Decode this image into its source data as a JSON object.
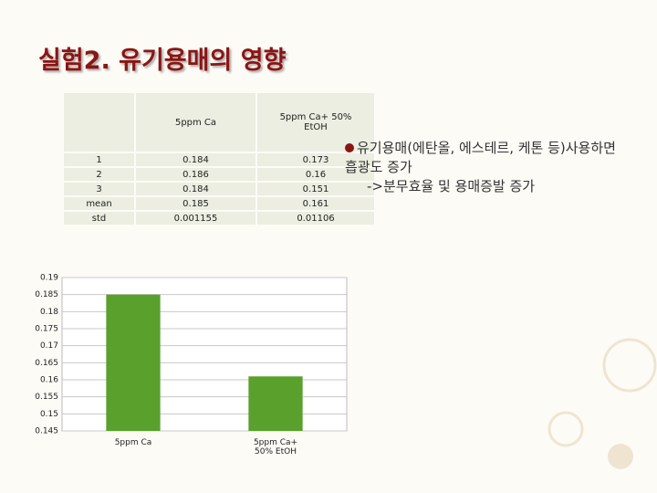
{
  "title": "실험2. 유기용매의 영향",
  "table": {
    "header": [
      "5ppm Ca",
      "5ppm Ca+ 50% EtOH"
    ],
    "rows": [
      [
        "1",
        "0.184",
        "0.173"
      ],
      [
        "2",
        "0.186",
        "0.16"
      ],
      [
        "3",
        "0.184",
        "0.151"
      ],
      [
        "mean",
        "0.185",
        "0.161"
      ],
      [
        "std",
        "0.001155",
        "0.01106"
      ]
    ]
  },
  "note": {
    "lines": [
      "유기용매(에탄올, 에스테르, 케톤 등)사용하면 흡광도 증가",
      "->분무효율 및 용매증발 증가"
    ]
  },
  "chart_data": {
    "type": "bar",
    "categories": [
      "5ppm Ca",
      "5ppm Ca+ 50% EtOH"
    ],
    "values": [
      0.185,
      0.161
    ],
    "color": "#5aa02c",
    "ylim": [
      0.145,
      0.19
    ],
    "yticks": [
      0.145,
      0.15,
      0.155,
      0.16,
      0.165,
      0.17,
      0.175,
      0.18,
      0.185,
      0.19
    ],
    "grid": true
  }
}
